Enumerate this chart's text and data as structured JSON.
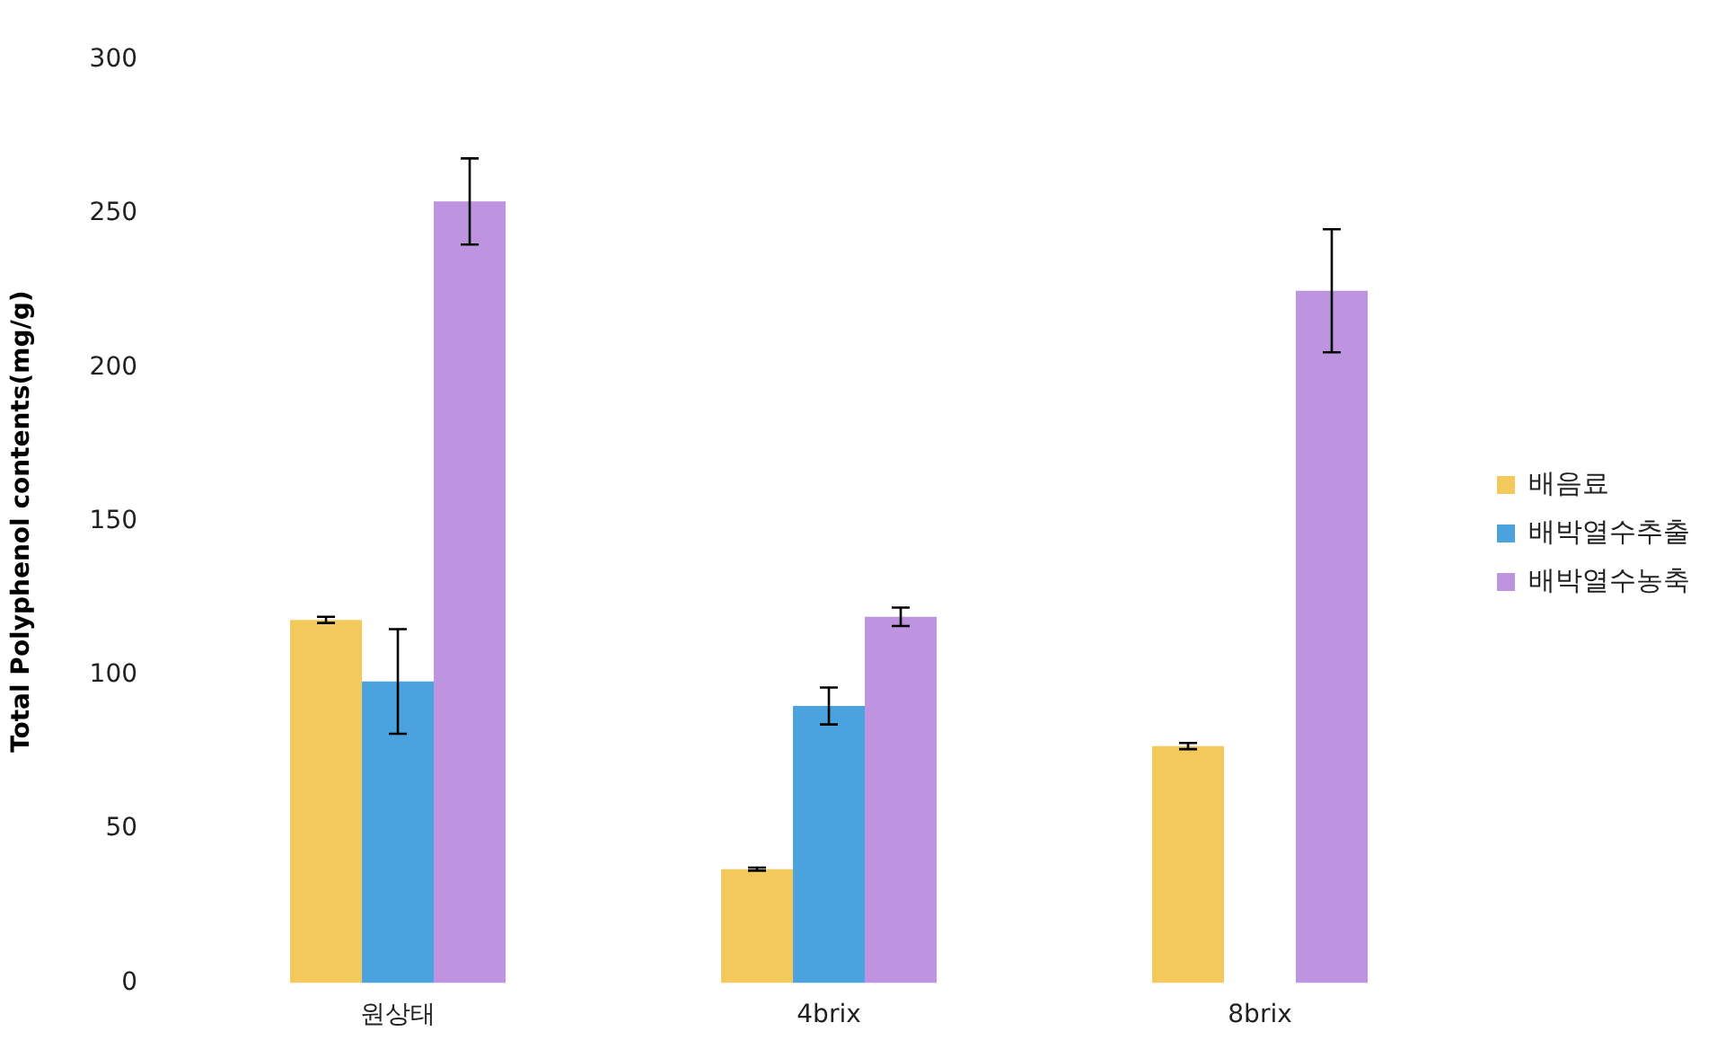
{
  "chart_data": {
    "type": "bar",
    "ylabel": "Total Polyphenol contents(mg/g)",
    "categories": [
      "원상태",
      "4brix",
      "8brix"
    ],
    "series": [
      {
        "name": "배음료",
        "color": "#f2c95a",
        "values": [
          118,
          37,
          77
        ],
        "errors": [
          1,
          0.5,
          1
        ]
      },
      {
        "name": "배박열수추출",
        "color": "#4aa3de",
        "values": [
          98,
          90,
          null
        ],
        "errors": [
          17,
          6,
          null
        ]
      },
      {
        "name": "배박열수농축",
        "color": "#be93e0",
        "values": [
          254,
          119,
          225
        ],
        "errors": [
          14,
          3,
          20
        ]
      }
    ],
    "ylim": [
      0,
      300
    ],
    "yticks": [
      0,
      50,
      100,
      150,
      200,
      250,
      300
    ],
    "grid": false,
    "legend": "right"
  }
}
